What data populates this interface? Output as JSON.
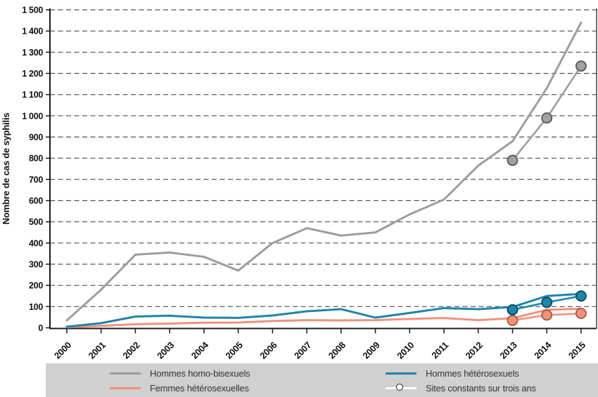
{
  "chart_data": {
    "type": "line",
    "title": "",
    "xlabel": "",
    "ylabel": "Nombre de cas de syphilis",
    "ylim": [
      0,
      1500
    ],
    "ytick_step": 100,
    "ytick_labels": [
      "0",
      "100",
      "200",
      "300",
      "400",
      "500",
      "600",
      "700",
      "800",
      "900",
      "1 000",
      "1 100",
      "1 200",
      "1 300",
      "1 400",
      "1 500"
    ],
    "x": [
      2000,
      2001,
      2002,
      2003,
      2004,
      2005,
      2006,
      2007,
      2008,
      2009,
      2010,
      2011,
      2012,
      2013,
      2014,
      2015
    ],
    "x_labels": [
      "2000",
      "2001",
      "2002",
      "2003",
      "2004",
      "2005",
      "2006",
      "2007",
      "2008",
      "2009",
      "2010",
      "2011",
      "2012",
      "2013",
      "2014",
      "2015"
    ],
    "grid": "horizontal-dashed",
    "legend_position": "bottom",
    "series": [
      {
        "id": "hommes-homo-bisexuels",
        "name": "Hommes homo-bisexuels",
        "color": "#9d9d9d",
        "values": [
          35,
          180,
          345,
          355,
          335,
          270,
          400,
          470,
          435,
          450,
          535,
          605,
          765,
          880,
          1130,
          1440
        ]
      },
      {
        "id": "femmes-heterosexuelles",
        "name": "Femmes hétérosexuelles",
        "color": "#f0927c",
        "values": [
          3,
          9,
          17,
          20,
          24,
          25,
          32,
          36,
          35,
          36,
          42,
          46,
          36,
          45,
          85,
          90
        ]
      },
      {
        "id": "hommes-heterosexuels",
        "name": "Hommes hétérosexuels",
        "color": "#1e85ab",
        "values": [
          5,
          22,
          53,
          57,
          48,
          47,
          58,
          78,
          88,
          48,
          70,
          93,
          88,
          98,
          150,
          160
        ]
      }
    ],
    "sites_constants_series": [
      {
        "id": "sites-hommes-homo-bisexuels",
        "name": "Hommes homo-bisexuels (sites constants sur trois ans)",
        "color": "#9d9d9d",
        "marker_fill": "#a2a2a2",
        "marker_stroke": "#5f5f5f",
        "x": [
          2013,
          2014,
          2015
        ],
        "values": [
          790,
          990,
          1235
        ]
      },
      {
        "id": "sites-femmes-heterosexuelles",
        "name": "Femmes hétérosexuelles (sites constants sur trois ans)",
        "color": "#f0927c",
        "marker_fill": "#f0927c",
        "marker_stroke": "#b05c41",
        "x": [
          2013,
          2014,
          2015
        ],
        "values": [
          35,
          60,
          68
        ]
      },
      {
        "id": "sites-hommes-heterosexuels",
        "name": "Hommes hétérosexuels (sites constants sur trois ans)",
        "color": "#1e85ab",
        "marker_fill": "#1e85ab",
        "marker_stroke": "#0c4f69",
        "x": [
          2013,
          2014,
          2015
        ],
        "values": [
          85,
          120,
          150
        ]
      }
    ]
  },
  "legend": {
    "background": "#d0d0d0",
    "items": [
      {
        "label": "Hommes homo-bisexuels",
        "swatch": "line",
        "color": "#9d9d9d"
      },
      {
        "label": "Femmes hétérosexuelles",
        "swatch": "line",
        "color": "#f0927c"
      },
      {
        "label": "Hommes hétérosexuels",
        "swatch": "line",
        "color": "#1e85ab"
      },
      {
        "label": "Sites constants sur trois ans",
        "swatch": "line-circle",
        "color": "#ffffff"
      }
    ]
  },
  "colors": {
    "grid": "#4f4f4f",
    "axis": "#1a1a1a",
    "plot_border_right": "#444444",
    "text": "#111111",
    "legend_background": "#d0d0d0"
  }
}
